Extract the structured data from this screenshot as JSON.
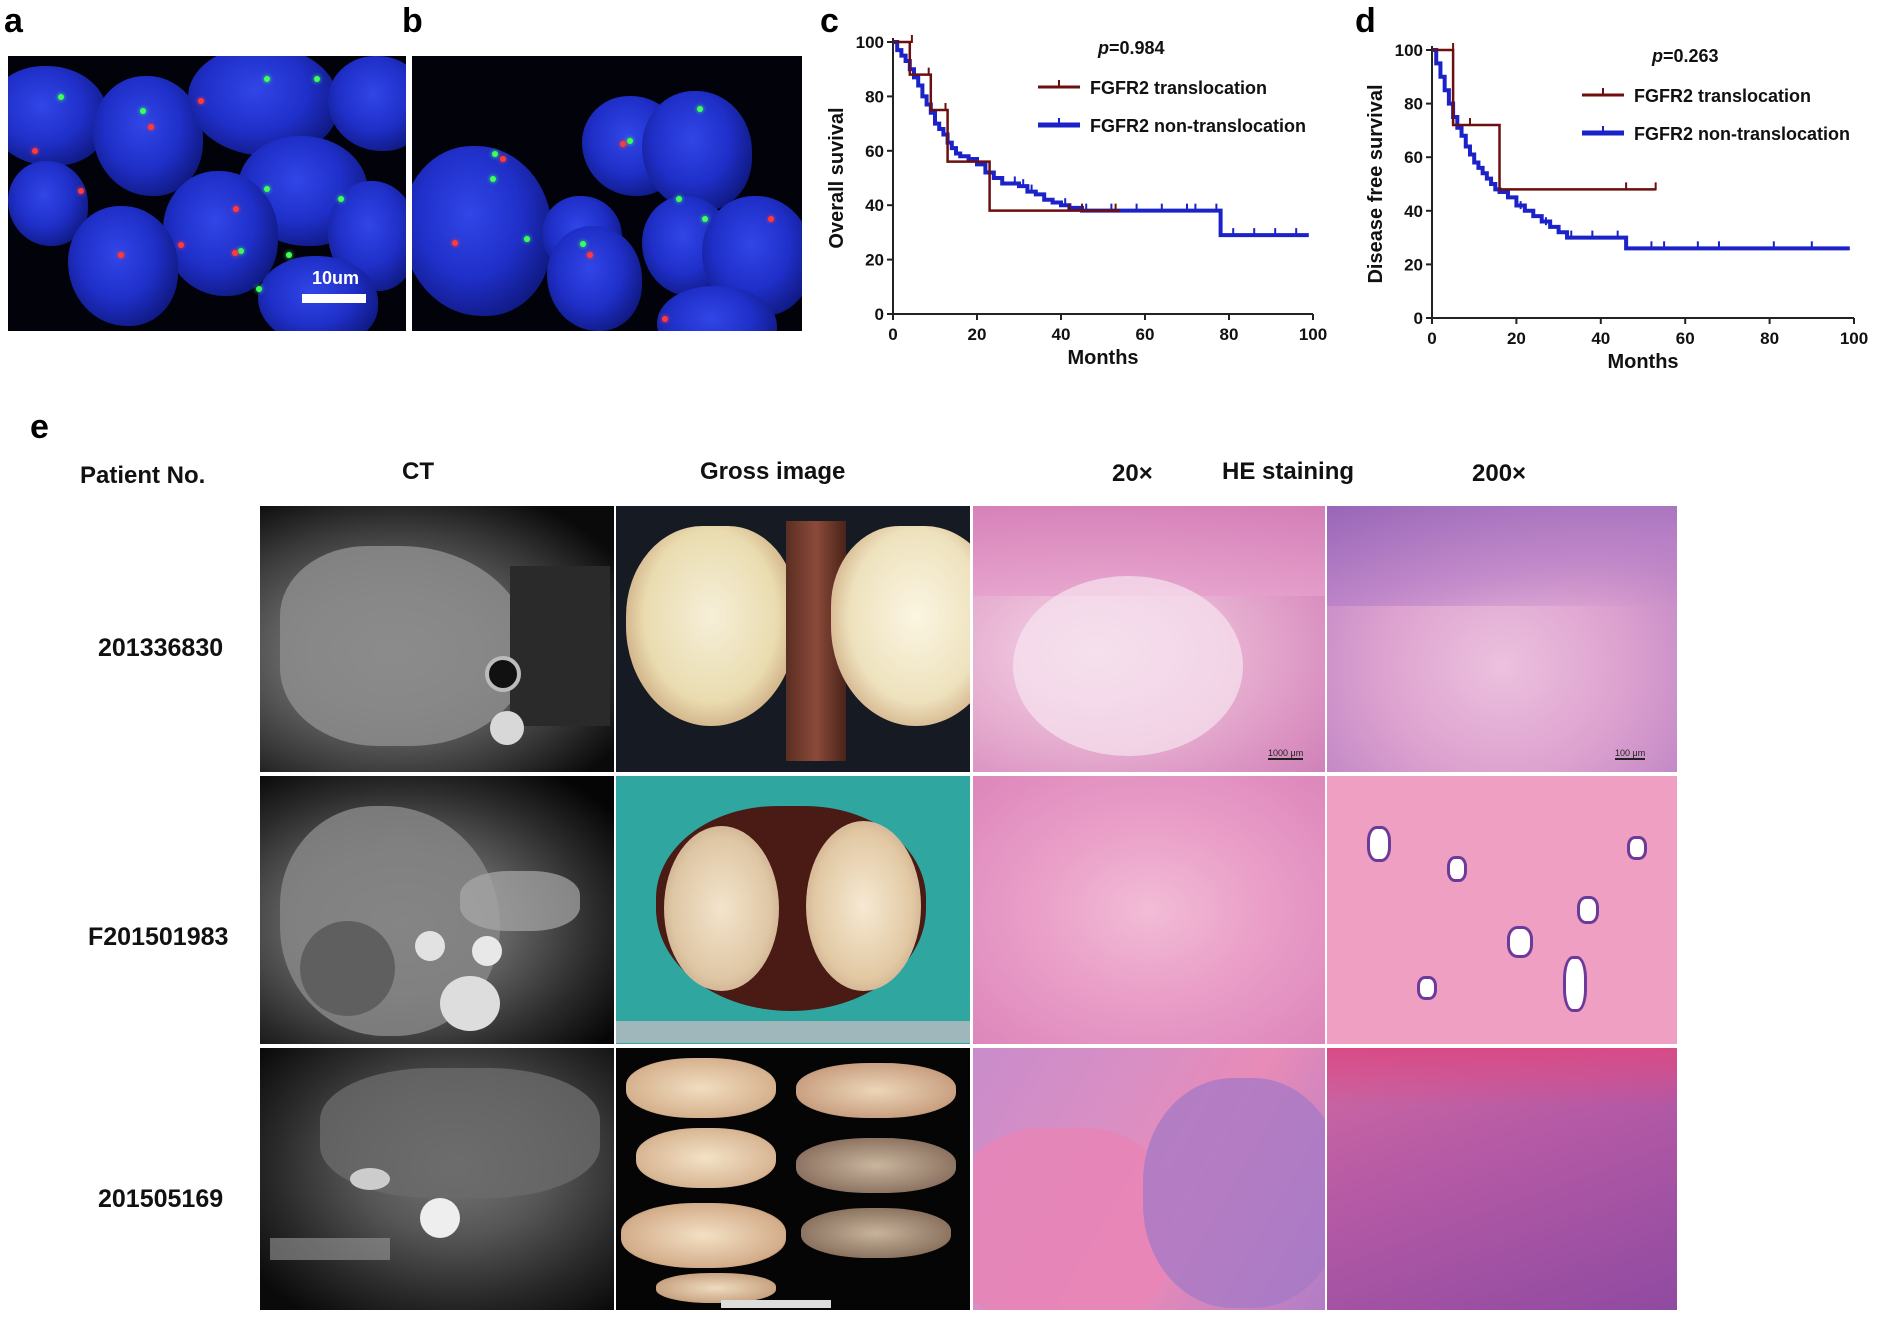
{
  "panels": {
    "a": "a",
    "b": "b",
    "c": "c",
    "d": "d",
    "e": "e"
  },
  "fish": {
    "scale_label": "10um"
  },
  "chart_data": [
    {
      "type": "line",
      "panel": "c",
      "ylabel": "Overall suvival",
      "xlabel": "Months",
      "annotation_p": "p",
      "annotation_value": "=0.984",
      "xlim": [
        0,
        100
      ],
      "ylim": [
        0,
        100
      ],
      "xticks": [
        "0",
        "20",
        "40",
        "60",
        "80",
        "100"
      ],
      "yticks": [
        "0",
        "20",
        "40",
        "60",
        "80",
        "100"
      ],
      "series": [
        {
          "name": "FGFR2 translocation",
          "color": "#6b0f0f",
          "x": [
            0,
            4,
            4,
            9,
            9,
            13,
            13,
            22,
            22,
            23,
            23,
            54
          ],
          "y": [
            100,
            100,
            88,
            88,
            75,
            75,
            56,
            56,
            56,
            56,
            38,
            38
          ],
          "censor_x": [
            4.5,
            8.5,
            12.5,
            42,
            45,
            53
          ],
          "censor_y": [
            100,
            88,
            75,
            38,
            38,
            38
          ]
        },
        {
          "name": "FGFR2 non-translocation",
          "color": "#1a22c8",
          "x": [
            0,
            1,
            2,
            3,
            4,
            5,
            6,
            7,
            8,
            9,
            10,
            11,
            12,
            13,
            14,
            15,
            16,
            18,
            20,
            22,
            24,
            26,
            28,
            30,
            32,
            34,
            36,
            38,
            40,
            42,
            45,
            50,
            55,
            60,
            65,
            70,
            75,
            78,
            78,
            85,
            90,
            95,
            99
          ],
          "y": [
            100,
            97,
            95,
            93,
            90,
            87,
            84,
            80,
            77,
            74,
            70,
            68,
            66,
            63,
            61,
            59,
            58,
            57,
            55,
            52,
            50,
            48,
            48,
            47,
            45,
            44,
            42,
            41,
            40,
            39,
            38,
            38,
            38,
            38,
            38,
            38,
            38,
            38,
            29,
            29,
            29,
            29,
            29
          ],
          "censor_x": [
            26,
            29,
            31,
            33,
            41,
            46,
            52,
            58,
            64,
            70,
            72,
            77,
            81,
            86,
            91,
            96
          ],
          "censor_y": [
            48,
            48,
            47,
            45,
            40,
            38,
            38,
            38,
            38,
            38,
            38,
            38,
            29,
            29,
            29,
            29
          ]
        }
      ]
    },
    {
      "type": "line",
      "panel": "d",
      "ylabel": "Disease free survival",
      "xlabel": "Months",
      "annotation_p": "p",
      "annotation_value": "=0.263",
      "xlim": [
        0,
        100
      ],
      "ylim": [
        0,
        100
      ],
      "xticks": [
        "0",
        "20",
        "40",
        "60",
        "80",
        "100"
      ],
      "yticks": [
        "0",
        "20",
        "40",
        "60",
        "80",
        "100"
      ],
      "series": [
        {
          "name": "FGFR2 translocation",
          "color": "#6b0f0f",
          "x": [
            0,
            5,
            5,
            16,
            16,
            53
          ],
          "y": [
            100,
            100,
            72,
            72,
            48,
            48
          ],
          "censor_x": [
            5,
            9,
            46,
            53
          ],
          "censor_y": [
            100,
            72,
            48,
            48
          ]
        },
        {
          "name": "FGFR2 non-translocation",
          "color": "#1a22c8",
          "x": [
            0,
            1,
            2,
            3,
            4,
            5,
            6,
            7,
            8,
            9,
            10,
            11,
            12,
            13,
            14,
            15,
            16,
            18,
            20,
            22,
            24,
            26,
            28,
            30,
            32,
            35,
            40,
            45,
            46,
            46,
            55,
            65,
            75,
            85,
            95,
            99
          ],
          "y": [
            100,
            95,
            90,
            85,
            80,
            75,
            71,
            68,
            64,
            61,
            58,
            56,
            54,
            52,
            50,
            48,
            47,
            45,
            42,
            40,
            38,
            36,
            34,
            32,
            30,
            30,
            30,
            30,
            30,
            26,
            26,
            26,
            26,
            26,
            26,
            26
          ],
          "censor_x": [
            21,
            27,
            33,
            38,
            44,
            52,
            55,
            63,
            68,
            81,
            90
          ],
          "censor_y": [
            41,
            35,
            30,
            30,
            30,
            26,
            26,
            26,
            26,
            26,
            26
          ]
        }
      ]
    }
  ],
  "figure_e": {
    "headers": {
      "patient": "Patient No.",
      "ct": "CT",
      "gross": "Gross image",
      "he_low": "20×",
      "he_title": "HE staining",
      "he_high": "200×"
    },
    "patients": [
      "201336830",
      "F201501983",
      "201505169"
    ],
    "scale_low": "1000 μm",
    "scale_high": "100 μm"
  }
}
